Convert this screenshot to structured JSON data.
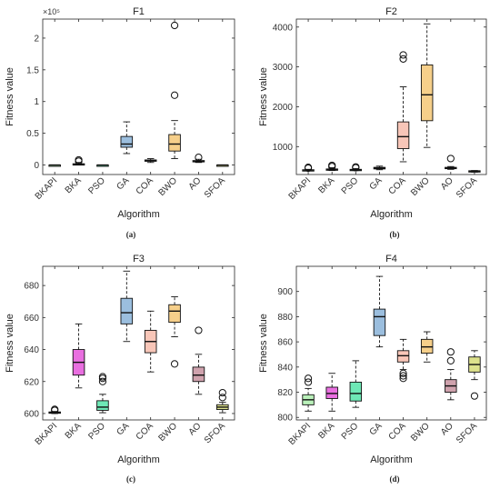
{
  "chart_data": [
    {
      "type": "box",
      "title": "F1",
      "caption": "(a)",
      "xlabel": "Algorithm",
      "ylabel": "Fitness value",
      "y_exponent_label": "×10⁵",
      "ylim": [
        -0.15,
        2.3
      ],
      "yticks": [
        0,
        0.5,
        1,
        1.5,
        2
      ],
      "ytick_labels": [
        "0",
        "0.5",
        "1",
        "1.5",
        "2"
      ],
      "categories": [
        "BKAPI",
        "BKA",
        "PSO",
        "GA",
        "COA",
        "BWO",
        "AO",
        "SFOA"
      ],
      "colors": [
        "#b9f0b9",
        "#e96fe0",
        "#6ee8b6",
        "#9bbede",
        "#f8c6b8",
        "#f6cf8a",
        "#cfa2ad",
        "#dde18c"
      ],
      "boxes": [
        {
          "min": 0,
          "q1": 0,
          "median": 0,
          "q3": 0,
          "max": 0,
          "outliers": []
        },
        {
          "min": 0,
          "q1": 0,
          "median": 0.01,
          "q3": 0.02,
          "max": 0.04,
          "outliers": [
            0.06,
            0.08
          ]
        },
        {
          "min": 0,
          "q1": 0,
          "median": 0,
          "q3": 0,
          "max": 0,
          "outliers": []
        },
        {
          "min": 0.18,
          "q1": 0.28,
          "median": 0.33,
          "q3": 0.45,
          "max": 0.68,
          "outliers": []
        },
        {
          "min": 0.04,
          "q1": 0.06,
          "median": 0.07,
          "q3": 0.08,
          "max": 0.1,
          "outliers": []
        },
        {
          "min": 0.1,
          "q1": 0.22,
          "median": 0.33,
          "q3": 0.48,
          "max": 0.7,
          "outliers": [
            1.1,
            2.2
          ]
        },
        {
          "min": 0.04,
          "q1": 0.05,
          "median": 0.06,
          "q3": 0.07,
          "max": 0.09,
          "outliers": [
            0.12
          ]
        },
        {
          "min": 0,
          "q1": 0,
          "median": 0,
          "q3": 0,
          "max": 0,
          "outliers": []
        }
      ]
    },
    {
      "type": "box",
      "title": "F2",
      "caption": "(b)",
      "xlabel": "Algorithm",
      "ylabel": "Fitness value",
      "ylim": [
        300,
        4200
      ],
      "yticks": [
        1000,
        2000,
        3000,
        4000
      ],
      "ytick_labels": [
        "1000",
        "2000",
        "3000",
        "4000"
      ],
      "categories": [
        "BKAPI",
        "BKA",
        "PSO",
        "GA",
        "COA",
        "BWO",
        "AO",
        "SFOA"
      ],
      "colors": [
        "#b9f0b9",
        "#e96fe0",
        "#6ee8b6",
        "#9bbede",
        "#f8c6b8",
        "#f6cf8a",
        "#cfa2ad",
        "#dde18c"
      ],
      "boxes": [
        {
          "min": 400,
          "q1": 405,
          "median": 410,
          "q3": 420,
          "max": 430,
          "outliers": [
            460,
            480
          ]
        },
        {
          "min": 400,
          "q1": 410,
          "median": 420,
          "q3": 440,
          "max": 470,
          "outliers": [
            500,
            530
          ]
        },
        {
          "min": 400,
          "q1": 410,
          "median": 420,
          "q3": 430,
          "max": 450,
          "outliers": [
            470,
            490
          ]
        },
        {
          "min": 420,
          "q1": 440,
          "median": 460,
          "q3": 480,
          "max": 510,
          "outliers": []
        },
        {
          "min": 620,
          "q1": 950,
          "median": 1250,
          "q3": 1620,
          "max": 2500,
          "outliers": [
            3200,
            3300
          ]
        },
        {
          "min": 980,
          "q1": 1650,
          "median": 2300,
          "q3": 3050,
          "max": 4080,
          "outliers": []
        },
        {
          "min": 430,
          "q1": 450,
          "median": 460,
          "q3": 480,
          "max": 500,
          "outliers": [
            700
          ]
        },
        {
          "min": 360,
          "q1": 375,
          "median": 385,
          "q3": 395,
          "max": 400,
          "outliers": []
        }
      ]
    },
    {
      "type": "box",
      "title": "F3",
      "caption": "(c)",
      "xlabel": "Algorithm",
      "ylabel": "Fitness value",
      "ylim": [
        596,
        692
      ],
      "yticks": [
        600,
        620,
        640,
        660,
        680
      ],
      "ytick_labels": [
        "600",
        "620",
        "640",
        "660",
        "680"
      ],
      "categories": [
        "BKAPI",
        "BKA",
        "PSO",
        "GA",
        "COA",
        "BWO",
        "AO",
        "SFOA"
      ],
      "colors": [
        "#b9f0b9",
        "#e96fe0",
        "#6ee8b6",
        "#9bbede",
        "#f8c6b8",
        "#f6cf8a",
        "#cfa2ad",
        "#dde18c"
      ],
      "boxes": [
        {
          "min": 600,
          "q1": 600.3,
          "median": 600.6,
          "q3": 601,
          "max": 601.3,
          "outliers": [
            602,
            602.6
          ]
        },
        {
          "min": 616,
          "q1": 624,
          "median": 632,
          "q3": 640,
          "max": 656,
          "outliers": []
        },
        {
          "min": 600.5,
          "q1": 602,
          "median": 604,
          "q3": 608,
          "max": 612,
          "outliers": [
            620,
            622,
            623
          ]
        },
        {
          "min": 645,
          "q1": 656,
          "median": 663,
          "q3": 672,
          "max": 689,
          "outliers": []
        },
        {
          "min": 626,
          "q1": 638,
          "median": 645,
          "q3": 652,
          "max": 664,
          "outliers": []
        },
        {
          "min": 648,
          "q1": 657,
          "median": 664,
          "q3": 668,
          "max": 673,
          "outliers": [
            631
          ]
        },
        {
          "min": 612,
          "q1": 620,
          "median": 624,
          "q3": 629,
          "max": 637,
          "outliers": [
            652
          ]
        },
        {
          "min": 600.5,
          "q1": 602.5,
          "median": 604,
          "q3": 605.5,
          "max": 607,
          "outliers": [
            610,
            613
          ]
        }
      ]
    },
    {
      "type": "box",
      "title": "F4",
      "caption": "(d)",
      "xlabel": "Algorithm",
      "ylabel": "Fitness value",
      "ylim": [
        798,
        920
      ],
      "yticks": [
        800,
        820,
        840,
        860,
        880,
        900
      ],
      "ytick_labels": [
        "800",
        "820",
        "840",
        "860",
        "880",
        "900"
      ],
      "categories": [
        "BKAPI",
        "BKA",
        "PSO",
        "GA",
        "COA",
        "BWO",
        "AO",
        "SFOA"
      ],
      "colors": [
        "#b9f0b9",
        "#e96fe0",
        "#6ee8b6",
        "#9bbede",
        "#f8c6b8",
        "#f6cf8a",
        "#cfa2ad",
        "#dde18c"
      ],
      "boxes": [
        {
          "min": 805,
          "q1": 810,
          "median": 814,
          "q3": 818,
          "max": 823,
          "outliers": [
            828,
            831
          ]
        },
        {
          "min": 805,
          "q1": 815,
          "median": 819,
          "q3": 824,
          "max": 835,
          "outliers": []
        },
        {
          "min": 808,
          "q1": 813,
          "median": 819,
          "q3": 828,
          "max": 845,
          "outliers": []
        },
        {
          "min": 856,
          "q1": 865,
          "median": 880,
          "q3": 886,
          "max": 912,
          "outliers": []
        },
        {
          "min": 838,
          "q1": 844,
          "median": 849,
          "q3": 853,
          "max": 862,
          "outliers": [
            831,
            833,
            835
          ]
        },
        {
          "min": 844,
          "q1": 851,
          "median": 856,
          "q3": 862,
          "max": 868,
          "outliers": []
        },
        {
          "min": 814,
          "q1": 820,
          "median": 825,
          "q3": 830,
          "max": 838,
          "outliers": [
            845,
            852
          ]
        },
        {
          "min": 830,
          "q1": 836,
          "median": 842,
          "q3": 848,
          "max": 853,
          "outliers": [
            817
          ]
        }
      ]
    }
  ]
}
